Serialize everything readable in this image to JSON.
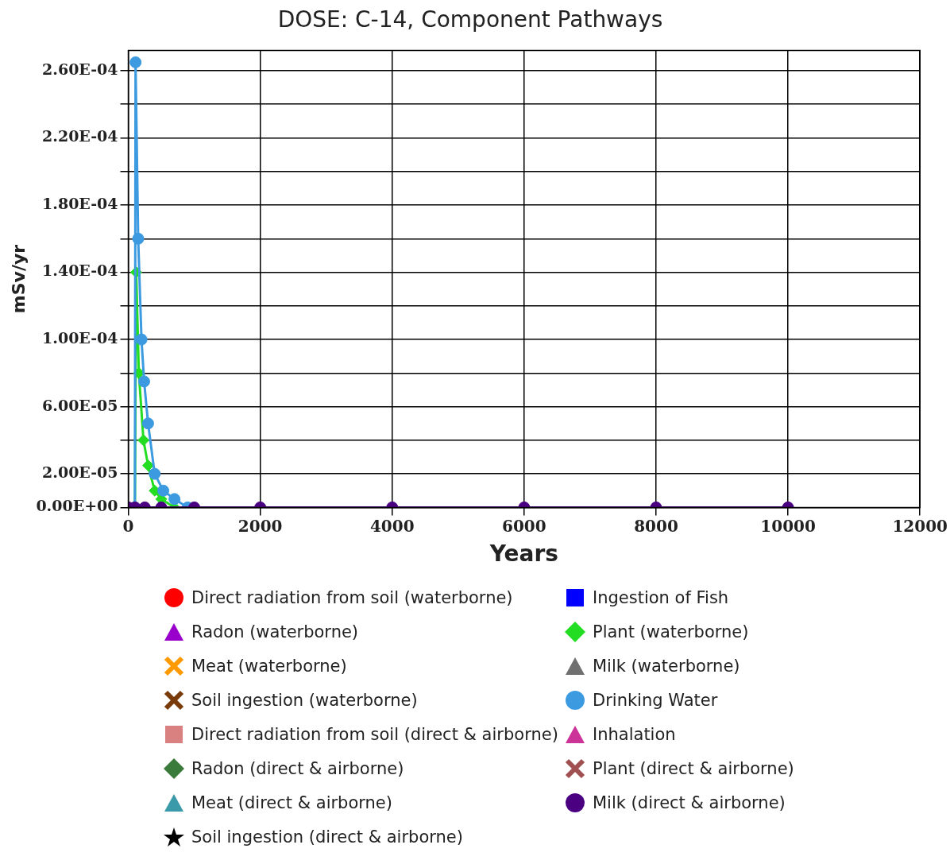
{
  "chart_data": {
    "type": "line",
    "title": "DOSE: C-14, Component Pathways",
    "xlabel": "Years",
    "ylabel": "mSv/yr",
    "x": [
      0,
      100,
      250,
      500,
      1000,
      2000,
      4000,
      6000,
      8000,
      10000
    ],
    "xlim": [
      0,
      12000
    ],
    "xticks": [
      0,
      2000,
      4000,
      6000,
      8000,
      10000,
      12000
    ],
    "ylim": [
      0,
      0.000272
    ],
    "yticks": [
      {
        "value": 0,
        "label": "0.00E+00"
      },
      {
        "value": 2e-05,
        "label": "2.00E-05"
      },
      {
        "value": 4e-05,
        "label": null
      },
      {
        "value": 6e-05,
        "label": "6.00E-05"
      },
      {
        "value": 8e-05,
        "label": null
      },
      {
        "value": 0.0001,
        "label": "1.00E-04"
      },
      {
        "value": 0.00012,
        "label": null
      },
      {
        "value": 0.00014,
        "label": "1.40E-04"
      },
      {
        "value": 0.00016,
        "label": null
      },
      {
        "value": 0.00018,
        "label": "1.80E-04"
      },
      {
        "value": 0.0002,
        "label": null
      },
      {
        "value": 0.00022,
        "label": "2.20E-04"
      },
      {
        "value": 0.00024,
        "label": null
      },
      {
        "value": 0.00026,
        "label": "2.60E-04"
      }
    ],
    "grid": true,
    "legend": "bottom",
    "series": [
      {
        "name": "Direct radiation from soil (waterborne)",
        "color": "#ff0000",
        "marker": "circle",
        "values": [
          null,
          null,
          null,
          null,
          null,
          null,
          null,
          null,
          null,
          null
        ]
      },
      {
        "name": "Radon (waterborne)",
        "color": "#9900cc",
        "marker": "triangle",
        "values": [
          null,
          null,
          null,
          null,
          null,
          null,
          null,
          null,
          null,
          null
        ]
      },
      {
        "name": "Meat (waterborne)",
        "color": "#ff9900",
        "marker": "cross",
        "values": [
          null,
          null,
          null,
          null,
          null,
          null,
          null,
          null,
          null,
          null
        ]
      },
      {
        "name": "Soil ingestion (waterborne)",
        "color": "#7a3b0a",
        "marker": "cross",
        "values": [
          null,
          null,
          null,
          null,
          null,
          null,
          null,
          null,
          null,
          null
        ]
      },
      {
        "name": "Direct radiation from soil (direct & airborne)",
        "color": "#d98080",
        "marker": "square",
        "values": [
          null,
          null,
          null,
          null,
          null,
          null,
          null,
          null,
          null,
          null
        ]
      },
      {
        "name": "Radon (direct & airborne)",
        "color": "#3a7a3a",
        "marker": "diamond",
        "values": [
          null,
          null,
          null,
          null,
          null,
          null,
          null,
          null,
          null,
          null
        ]
      },
      {
        "name": "Meat (direct & airborne)",
        "color": "#3a9aaa",
        "marker": "triangle",
        "values": [
          null,
          null,
          null,
          null,
          null,
          null,
          null,
          null,
          null,
          null
        ]
      },
      {
        "name": "Soil ingestion (direct & airborne)",
        "color": "#000000",
        "marker": "star",
        "values": [
          null,
          null,
          null,
          null,
          null,
          null,
          null,
          null,
          null,
          null
        ]
      },
      {
        "name": "Ingestion of Fish",
        "color": "#0000ff",
        "marker": "square",
        "values": [
          null,
          null,
          null,
          null,
          null,
          null,
          null,
          null,
          null,
          null
        ]
      },
      {
        "name": "Plant (waterborne)",
        "color": "#22dd22",
        "marker": "diamond",
        "x": [
          100,
          120,
          160,
          230,
          300,
          400,
          500,
          700
        ],
        "values": [
          0,
          0.00014,
          8e-05,
          4e-05,
          2.5e-05,
          1e-05,
          5e-06,
          0
        ]
      },
      {
        "name": "Milk (waterborne)",
        "color": "#707070",
        "marker": "triangle",
        "values": [
          null,
          null,
          null,
          null,
          null,
          null,
          null,
          null,
          null,
          null
        ]
      },
      {
        "name": "Drinking Water",
        "color": "#3c9ae0",
        "marker": "circle",
        "x": [
          100,
          110,
          150,
          200,
          240,
          300,
          400,
          530,
          700,
          900
        ],
        "values": [
          0,
          0.000265,
          0.00016,
          0.0001,
          7.5e-05,
          5e-05,
          2e-05,
          1e-05,
          5e-06,
          0
        ]
      },
      {
        "name": "Inhalation",
        "color": "#cc3399",
        "marker": "triangle",
        "values": [
          null,
          null,
          null,
          null,
          null,
          null,
          null,
          null,
          null,
          null
        ]
      },
      {
        "name": "Plant (direct & airborne)",
        "color": "#a05050",
        "marker": "cross",
        "values": [
          null,
          null,
          null,
          null,
          null,
          null,
          null,
          null,
          null,
          null
        ]
      },
      {
        "name": "Milk (direct & airborne)",
        "color": "#4b0082",
        "marker": "circle",
        "values": [
          0,
          0,
          0,
          0,
          0,
          0,
          0,
          0,
          0,
          0
        ]
      }
    ]
  }
}
